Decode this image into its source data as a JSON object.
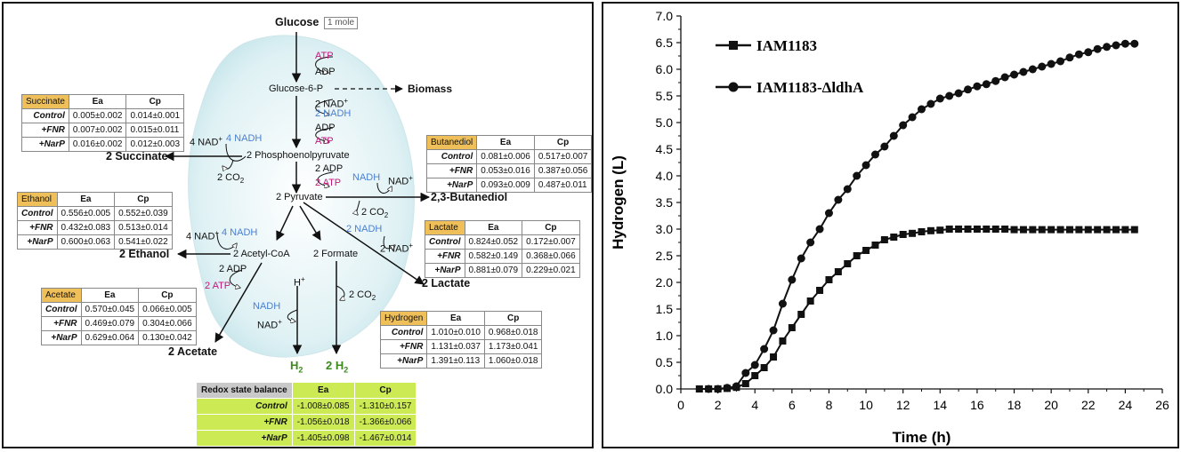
{
  "pathway": {
    "glucose": "Glucose",
    "mole": "1 mole",
    "atp1": "ATP",
    "adp1": "ADP",
    "g6p": "Glucose-6-P",
    "biomass": "Biomass",
    "nad2": "2 NAD",
    "nadh2": "2 NADH",
    "adp2": "ADP",
    "atp2": "ATP",
    "nad4": "4 NAD",
    "nadh4": "4 NADH",
    "pep": "2 Phosphoenolpyruvate",
    "succinate": "2 Succinate",
    "co2a": "2 CO",
    "adp3": "2 ADP",
    "atp3": "2 ATP",
    "nadh_b": "NADH",
    "nad_b": "NAD",
    "pyruvate": "2 Pyruvate",
    "butanediol": "2,3-Butanediol",
    "co2b": "2 CO",
    "nad4b": "4 NAD",
    "nadh4b": "4 NADH",
    "nadh2l": "2 NADH",
    "nad2l": "2 NAD",
    "acetylcoa": "2 Acetyl-CoA",
    "formate": "2 Formate",
    "ethanol": "2 Ethanol",
    "lactate": "2 Lactate",
    "adp4": "2 ADP",
    "atp4": "2 ATP",
    "hplus": "H",
    "co2c": "2 CO",
    "nadh_h": "NADH",
    "nad_h": "NAD",
    "acetate": "2 Acetate",
    "h2a": "H",
    "h2b": "2 H"
  },
  "tables": {
    "succinate": {
      "name": "Succinate",
      "ea": "Ea",
      "cp": "Cp",
      "rows": [
        [
          "Control",
          "0.005±0.002",
          "0.014±0.001"
        ],
        [
          "+FNR",
          "0.007±0.002",
          "0.015±0.011"
        ],
        [
          "+NarP",
          "0.016±0.002",
          "0.012±0.003"
        ]
      ]
    },
    "ethanol": {
      "name": "Ethanol",
      "ea": "Ea",
      "cp": "Cp",
      "rows": [
        [
          "Control",
          "0.556±0.005",
          "0.552±0.039"
        ],
        [
          "+FNR",
          "0.432±0.083",
          "0.513±0.014"
        ],
        [
          "+NarP",
          "0.600±0.063",
          "0.541±0.022"
        ]
      ]
    },
    "acetate": {
      "name": "Acetate",
      "ea": "Ea",
      "cp": "Cp",
      "rows": [
        [
          "Control",
          "0.570±0.045",
          "0.066±0.005"
        ],
        [
          "+FNR",
          "0.469±0.079",
          "0.304±0.066"
        ],
        [
          "+NarP",
          "0.629±0.064",
          "0.130±0.042"
        ]
      ]
    },
    "butanediol": {
      "name": "Butanediol",
      "ea": "Ea",
      "cp": "Cp",
      "rows": [
        [
          "Control",
          "0.081±0.006",
          "0.517±0.007"
        ],
        [
          "+FNR",
          "0.053±0.016",
          "0.387±0.056"
        ],
        [
          "+NarP",
          "0.093±0.009",
          "0.487±0.011"
        ]
      ]
    },
    "lactate": {
      "name": "Lactate",
      "ea": "Ea",
      "cp": "Cp",
      "rows": [
        [
          "Control",
          "0.824±0.052",
          "0.172±0.007"
        ],
        [
          "+FNR",
          "0.582±0.149",
          "0.368±0.066"
        ],
        [
          "+NarP",
          "0.881±0.079",
          "0.229±0.021"
        ]
      ]
    },
    "hydrogen": {
      "name": "Hydrogen",
      "ea": "Ea",
      "cp": "Cp",
      "rows": [
        [
          "Control",
          "1.010±0.010",
          "0.968±0.018"
        ],
        [
          "+FNR",
          "1.131±0.037",
          "1.173±0.041"
        ],
        [
          "+NarP",
          "1.391±0.113",
          "1.060±0.018"
        ]
      ]
    },
    "redox": {
      "name": "Redox state balance",
      "ea": "Ea",
      "cp": "Cp",
      "rows": [
        [
          "Control",
          "-1.008±0.085",
          "-1.310±0.157"
        ],
        [
          "+FNR",
          "-1.056±0.018",
          "-1.366±0.066"
        ],
        [
          "+NarP",
          "-1.405±0.098",
          "-1.467±0.014"
        ]
      ]
    }
  },
  "chart_data": {
    "type": "line",
    "xlabel": "Time (h)",
    "ylabel": "Hydrogen (L)",
    "xlim": [
      0,
      26
    ],
    "ylim": [
      0,
      7.0
    ],
    "xticks": [
      "0",
      "2",
      "4",
      "6",
      "8",
      "10",
      "12",
      "14",
      "16",
      "18",
      "20",
      "22",
      "24",
      "26"
    ],
    "yticks": [
      "0.0",
      "0.5",
      "1.0",
      "1.5",
      "2.0",
      "2.5",
      "3.0",
      "3.5",
      "4.0",
      "4.5",
      "5.0",
      "5.5",
      "6.0",
      "6.5",
      "7.0"
    ],
    "legend_position": "top-left",
    "series": [
      {
        "name": "IAM1183",
        "marker": "square",
        "x": [
          1,
          1.5,
          2,
          2.5,
          3,
          3.5,
          4,
          4.5,
          5,
          5.5,
          6,
          6.5,
          7,
          7.5,
          8,
          8.5,
          9,
          9.5,
          10,
          10.5,
          11,
          11.5,
          12,
          12.5,
          13,
          13.5,
          14,
          14.5,
          15,
          15.5,
          16,
          16.5,
          17,
          17.5,
          18,
          18.5,
          19,
          19.5,
          20,
          20.5,
          21,
          21.5,
          22,
          22.5,
          23,
          23.5,
          24,
          24.5
        ],
        "y": [
          0,
          0,
          0,
          0.01,
          0.03,
          0.1,
          0.25,
          0.4,
          0.6,
          0.9,
          1.15,
          1.4,
          1.65,
          1.85,
          2.05,
          2.2,
          2.35,
          2.5,
          2.6,
          2.7,
          2.8,
          2.85,
          2.9,
          2.92,
          2.95,
          2.97,
          2.98,
          3.0,
          3.0,
          3.0,
          3.0,
          3.0,
          3.0,
          3.0,
          2.99,
          2.99,
          2.99,
          2.99,
          2.99,
          2.99,
          2.99,
          2.99,
          2.99,
          2.99,
          2.99,
          2.99,
          2.99,
          2.99
        ]
      },
      {
        "name": "IAM1183-ΔldhA",
        "marker": "circle",
        "x": [
          1.5,
          2,
          2.5,
          3,
          3.5,
          4,
          4.5,
          5,
          5.5,
          6,
          6.5,
          7,
          7.5,
          8,
          8.5,
          9,
          9.5,
          10,
          10.5,
          11,
          11.5,
          12,
          12.5,
          13,
          13.5,
          14,
          14.5,
          15,
          15.5,
          16,
          16.5,
          17,
          17.5,
          18,
          18.5,
          19,
          19.5,
          20,
          20.5,
          21,
          21.5,
          22,
          22.5,
          23,
          23.5,
          24,
          24.5
        ],
        "y": [
          0,
          0,
          0.02,
          0.05,
          0.3,
          0.45,
          0.75,
          1.1,
          1.6,
          2.05,
          2.45,
          2.75,
          3.0,
          3.3,
          3.55,
          3.75,
          4.0,
          4.2,
          4.4,
          4.55,
          4.75,
          4.95,
          5.1,
          5.25,
          5.35,
          5.45,
          5.5,
          5.55,
          5.62,
          5.68,
          5.72,
          5.78,
          5.85,
          5.9,
          5.95,
          6.0,
          6.05,
          6.1,
          6.15,
          6.22,
          6.28,
          6.32,
          6.38,
          6.42,
          6.45,
          6.48,
          6.48
        ]
      }
    ]
  }
}
